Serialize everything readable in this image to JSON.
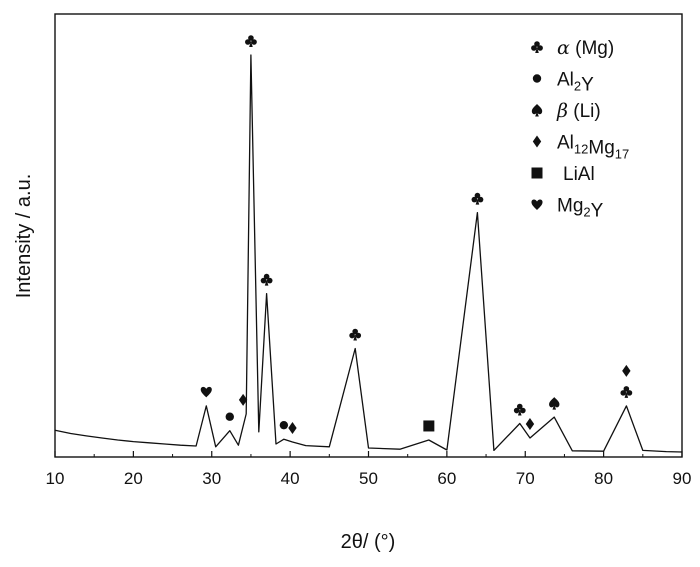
{
  "chart_data": {
    "type": "line",
    "xlabel": "2θ/ (°)",
    "ylabel": "Intensity / a.u.",
    "xlim": [
      10,
      90
    ],
    "ylim": [
      0,
      100
    ],
    "xticks": [
      10,
      20,
      30,
      40,
      50,
      60,
      70,
      80,
      90
    ],
    "grid": false,
    "series": [
      {
        "x": [
          10,
          12,
          14,
          16,
          18,
          20,
          22,
          24,
          26,
          28,
          29.3,
          30.5,
          32.3,
          33.4,
          34.4,
          35.0,
          36.0,
          37.0,
          38.2,
          39.2,
          40.3,
          42,
          45,
          48.3,
          50,
          54,
          57.7,
          60,
          63.9,
          66,
          69.3,
          70.6,
          73.7,
          76,
          80,
          82.9,
          85,
          88,
          90
        ],
        "y": [
          6.4,
          5.6,
          5.0,
          4.5,
          4.0,
          3.6,
          3.3,
          3.0,
          2.7,
          2.5,
          12.5,
          2.3,
          6.3,
          2.7,
          10.5,
          100,
          6.0,
          40.5,
          3.0,
          4.2,
          3.5,
          2.6,
          2.3,
          26.8,
          2.0,
          1.7,
          4.0,
          1.5,
          60.7,
          1.4,
          8.1,
          4.5,
          9.7,
          1.3,
          1.2,
          12.5,
          1.4,
          1.1,
          1.0
        ]
      }
    ],
    "legend_position": "top-right",
    "legend": [
      {
        "symbol": "club",
        "name_main": "α",
        "name_sub": "",
        "name_rest": " (Mg)"
      },
      {
        "symbol": "circle",
        "name_main": "Al",
        "name_sub": "2",
        "name_rest": "Y"
      },
      {
        "symbol": "spade",
        "name_main": "β",
        "name_sub": "",
        "name_rest": " (Li)"
      },
      {
        "symbol": "diamond",
        "name_main": "Al",
        "name_sub": "12",
        "name_rest": "Mg",
        "name_sub2": "17"
      },
      {
        "symbol": "square",
        "name_main": "LiAl",
        "name_sub": "",
        "name_rest": ""
      },
      {
        "symbol": "heart",
        "name_main": "Mg",
        "name_sub": "2",
        "name_rest": "Y"
      }
    ],
    "peak_markers": [
      {
        "x": 29.3,
        "symbol": "heart"
      },
      {
        "x": 32.3,
        "symbol": "circle"
      },
      {
        "x": 34.0,
        "symbol": "diamond"
      },
      {
        "x": 35.0,
        "symbol": "club"
      },
      {
        "x": 37.0,
        "symbol": "club"
      },
      {
        "x": 39.2,
        "symbol": "circle"
      },
      {
        "x": 40.3,
        "symbol": "diamond"
      },
      {
        "x": 48.3,
        "symbol": "club"
      },
      {
        "x": 57.7,
        "symbol": "square"
      },
      {
        "x": 63.9,
        "symbol": "club"
      },
      {
        "x": 69.3,
        "symbol": "club"
      },
      {
        "x": 70.6,
        "symbol": "diamond"
      },
      {
        "x": 73.7,
        "symbol": "spade"
      },
      {
        "x": 82.9,
        "symbol": "club"
      },
      {
        "x": 82.9,
        "symbol": "diamond",
        "stack": 1
      }
    ]
  }
}
